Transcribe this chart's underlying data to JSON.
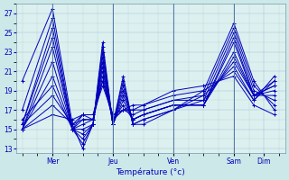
{
  "xlabel": "Température (°c)",
  "bg_color": "#cce8e8",
  "plot_bg_color": "#ddf0f0",
  "line_color": "#0000bb",
  "yticks": [
    13,
    15,
    17,
    19,
    21,
    23,
    25,
    27
  ],
  "ylim": [
    12.5,
    28.0
  ],
  "xlim": [
    -0.1,
    4.35
  ],
  "day_positions": [
    0.5,
    1.5,
    2.5,
    3.5,
    4.0
  ],
  "day_labels": [
    "Mer",
    "Jeu",
    "Ven",
    "Sam",
    "Dim"
  ],
  "vline_positions": [
    0.5,
    1.5,
    2.5,
    3.5
  ],
  "series": [
    {
      "x": [
        0.0,
        0.5,
        0.83,
        1.0,
        1.17,
        1.33,
        1.5,
        1.67,
        1.83,
        2.0,
        2.5,
        3.0,
        3.5,
        3.83,
        4.17
      ],
      "y": [
        20.0,
        27.5,
        15.5,
        13.0,
        15.5,
        24.0,
        15.5,
        20.5,
        15.5,
        15.5,
        17.0,
        19.0,
        26.0,
        20.0,
        17.0
      ]
    },
    {
      "x": [
        0.0,
        0.5,
        0.83,
        1.0,
        1.17,
        1.33,
        1.5,
        1.67,
        1.83,
        2.0,
        2.5,
        3.0,
        3.5,
        3.83,
        4.17
      ],
      "y": [
        17.0,
        26.5,
        15.0,
        13.5,
        15.5,
        23.5,
        15.5,
        20.0,
        15.5,
        16.0,
        17.0,
        18.5,
        25.5,
        19.5,
        17.5
      ]
    },
    {
      "x": [
        0.0,
        0.5,
        0.83,
        1.0,
        1.17,
        1.33,
        1.5,
        1.67,
        1.83,
        2.0,
        2.5,
        3.0,
        3.5,
        3.83,
        4.17
      ],
      "y": [
        15.5,
        25.5,
        15.0,
        14.0,
        15.5,
        23.0,
        15.5,
        19.5,
        15.5,
        16.0,
        17.0,
        18.0,
        25.0,
        19.0,
        18.0
      ]
    },
    {
      "x": [
        0.0,
        0.5,
        0.83,
        1.0,
        1.17,
        1.33,
        1.5,
        1.67,
        1.83,
        2.0,
        2.5,
        3.0,
        3.5,
        3.83,
        4.17
      ],
      "y": [
        15.5,
        24.5,
        15.0,
        14.5,
        15.5,
        22.5,
        15.5,
        19.0,
        16.0,
        16.5,
        17.5,
        17.5,
        24.5,
        18.5,
        18.5
      ]
    },
    {
      "x": [
        0.0,
        0.5,
        0.83,
        1.0,
        1.17,
        1.33,
        1.5,
        1.67,
        1.83,
        2.0,
        2.5,
        3.0,
        3.5,
        3.83,
        4.17
      ],
      "y": [
        15.0,
        23.5,
        15.0,
        15.0,
        15.5,
        22.0,
        15.5,
        18.5,
        16.0,
        16.5,
        17.5,
        17.5,
        24.0,
        18.5,
        19.0
      ]
    },
    {
      "x": [
        0.0,
        0.5,
        0.83,
        1.0,
        1.17,
        1.33,
        1.5,
        1.67,
        1.83,
        2.0,
        2.5,
        3.0,
        3.5,
        3.83,
        4.17
      ],
      "y": [
        15.0,
        22.0,
        15.0,
        15.5,
        16.0,
        21.5,
        15.5,
        18.0,
        16.0,
        16.5,
        17.5,
        17.5,
        23.0,
        18.5,
        19.5
      ]
    },
    {
      "x": [
        0.0,
        0.5,
        0.83,
        1.0,
        1.17,
        1.33,
        1.5,
        1.67,
        1.83,
        2.0,
        2.5,
        3.0,
        3.5,
        3.83,
        4.17
      ],
      "y": [
        15.0,
        20.5,
        15.0,
        16.0,
        16.0,
        21.0,
        16.0,
        17.5,
        16.0,
        16.5,
        17.5,
        17.5,
        22.5,
        18.5,
        19.5
      ]
    },
    {
      "x": [
        0.0,
        0.5,
        0.83,
        1.0,
        1.17,
        1.33,
        1.5,
        1.67,
        1.83,
        2.0,
        2.5,
        3.0,
        3.5,
        3.83,
        4.17
      ],
      "y": [
        16.0,
        19.5,
        15.0,
        16.5,
        16.0,
        20.5,
        16.0,
        17.0,
        16.5,
        17.0,
        18.0,
        18.0,
        22.0,
        18.5,
        20.0
      ]
    },
    {
      "x": [
        0.0,
        0.5,
        0.83,
        1.0,
        1.17,
        1.33,
        1.5,
        1.67,
        1.83,
        2.0,
        2.5,
        3.0,
        3.5,
        3.83,
        4.17
      ],
      "y": [
        15.5,
        18.5,
        15.5,
        16.0,
        16.0,
        20.0,
        16.0,
        17.0,
        17.0,
        17.0,
        18.0,
        18.5,
        21.5,
        18.0,
        20.0
      ]
    },
    {
      "x": [
        0.0,
        0.5,
        0.83,
        1.0,
        1.17,
        1.33,
        1.5,
        1.67,
        1.83,
        2.0,
        2.5,
        3.0,
        3.5,
        3.83,
        4.17
      ],
      "y": [
        15.0,
        17.5,
        15.5,
        16.5,
        16.5,
        20.0,
        16.5,
        17.0,
        17.0,
        17.5,
        18.5,
        19.0,
        21.0,
        18.0,
        20.5
      ]
    },
    {
      "x": [
        0.0,
        0.5,
        0.83,
        1.0,
        1.17,
        1.33,
        1.5,
        1.67,
        1.83,
        2.0,
        2.5,
        3.0,
        3.5,
        3.83,
        4.17
      ],
      "y": [
        15.0,
        16.5,
        16.0,
        16.5,
        16.5,
        19.5,
        16.5,
        17.0,
        17.5,
        17.5,
        19.0,
        19.5,
        20.5,
        17.5,
        16.5
      ]
    }
  ]
}
